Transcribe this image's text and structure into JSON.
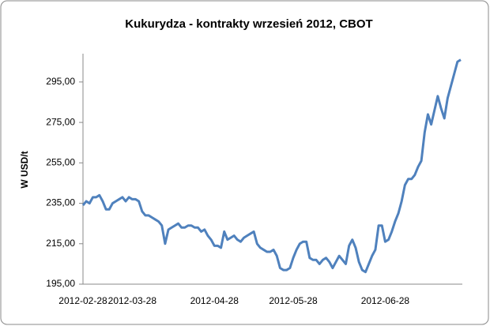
{
  "chart_data": {
    "type": "line",
    "title": "Kukurydza - kontrakty wrzesień 2012, CBOT",
    "y_label": "W USD/t",
    "categories": [
      "2012-02-28",
      null,
      null,
      null,
      null,
      null,
      null,
      null,
      null,
      null,
      null,
      null,
      null,
      null,
      null,
      "2012-03-28",
      null,
      null,
      null,
      null,
      null,
      null,
      null,
      null,
      null,
      null,
      null,
      null,
      null,
      null,
      null,
      null,
      null,
      null,
      null,
      null,
      null,
      null,
      null,
      null,
      "2012-04-28",
      null,
      null,
      null,
      null,
      null,
      null,
      null,
      null,
      null,
      null,
      null,
      null,
      null,
      null,
      null,
      null,
      null,
      null,
      null,
      null,
      null,
      null,
      null,
      "2012-05-28",
      null,
      null,
      null,
      null,
      null,
      null,
      null,
      null,
      null,
      null,
      null,
      null,
      null,
      null,
      null,
      null,
      null,
      null,
      null,
      null,
      null,
      null,
      null,
      null,
      null,
      null,
      null,
      "2012-06-28",
      null,
      null,
      null,
      null,
      null,
      null,
      null,
      null,
      null,
      null,
      null,
      null,
      null,
      null,
      null,
      null,
      null,
      null,
      null,
      null,
      null,
      null,
      null
    ],
    "values": [
      234,
      236,
      235,
      238,
      238,
      239,
      236,
      232,
      232,
      235,
      236,
      237,
      238,
      236,
      238,
      237,
      237,
      236,
      231,
      229,
      229,
      228,
      227,
      226,
      224,
      215,
      222,
      223,
      224,
      225,
      223,
      223,
      224,
      224,
      223,
      223,
      221,
      222,
      219,
      217,
      214,
      214,
      213,
      221,
      217,
      218,
      219,
      217,
      216,
      218,
      219,
      220,
      221,
      215,
      213,
      212,
      211,
      211,
      212,
      209,
      203,
      202,
      202,
      203,
      208,
      212,
      215,
      216,
      216,
      208,
      207,
      207,
      205,
      207,
      208,
      206,
      203,
      206,
      209,
      207,
      205,
      214,
      217,
      213,
      206,
      202,
      201,
      205,
      209,
      212,
      224,
      224,
      216,
      217,
      221,
      226,
      230,
      236,
      244,
      247,
      247,
      249,
      253,
      256,
      270,
      279,
      274,
      281,
      288,
      282,
      277,
      287,
      293,
      299,
      305,
      306
    ],
    "color": "#4f81bd",
    "ylim": [
      195,
      309
    ],
    "yticks": [
      {
        "value": 195,
        "label": "195,00"
      },
      {
        "value": 215,
        "label": "215,00"
      },
      {
        "value": 235,
        "label": "235,00"
      },
      {
        "value": 255,
        "label": "255,00"
      },
      {
        "value": 275,
        "label": "275,00"
      },
      {
        "value": 295,
        "label": "295,00"
      }
    ],
    "grid": false
  }
}
